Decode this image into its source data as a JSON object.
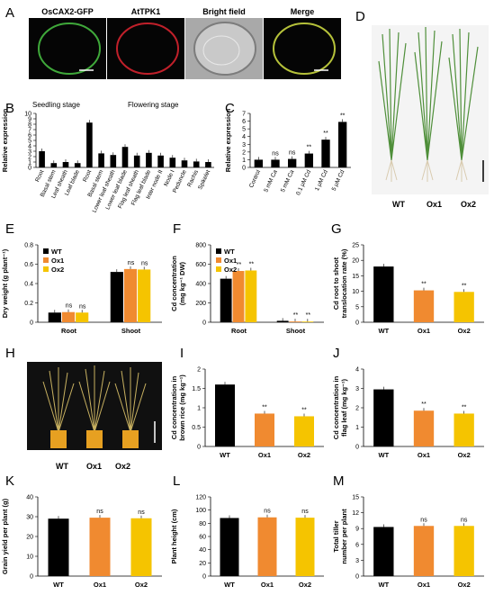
{
  "panel_letters": [
    "A",
    "B",
    "C",
    "D",
    "E",
    "F",
    "G",
    "H",
    "I",
    "J",
    "K",
    "L",
    "M"
  ],
  "micro_titles": [
    "OsCAX2-GFP",
    "AtTPK1",
    "Bright field",
    "Merge"
  ],
  "stage_labels": {
    "seedling": "Seedling stage",
    "flowering": "Flowering stage"
  },
  "photo_D_labels": [
    "WT",
    "Ox1",
    "Ox2"
  ],
  "photo_H_labels": [
    "WT",
    "Ox1",
    "Ox2"
  ],
  "colors": {
    "WT": "#000000",
    "Ox1": "#f08a30",
    "Ox2": "#f5c400",
    "GFP": "#3fa83a",
    "TPK": "#c0202a",
    "merge": "#b5c13a"
  },
  "chart_data": [
    {
      "id": "B",
      "type": "bar",
      "ylabel": "Relative expression",
      "ylim": [
        0,
        10
      ],
      "yticks": [
        0,
        1,
        2,
        3,
        4,
        5,
        6,
        7,
        8,
        9,
        10
      ],
      "categories": [
        "Root",
        "Basal stem",
        "Leaf sheath",
        "Leaf blade",
        "Root",
        "Basal stem",
        "Lower leaf sheath",
        "Lower leaf blade",
        "Flag leaf sheath",
        "Flag leaf blade",
        "Inter node II",
        "Node I",
        "Peduncle",
        "Rachis",
        "Spikelet"
      ],
      "values": [
        3.0,
        0.8,
        1.0,
        0.8,
        8.3,
        2.6,
        2.3,
        3.8,
        2.2,
        2.7,
        2.2,
        1.8,
        1.3,
        1.1,
        1.0
      ]
    },
    {
      "id": "C",
      "type": "bar",
      "ylabel": "Relative expression",
      "ylim": [
        0,
        7
      ],
      "yticks": [
        0,
        1,
        2,
        3,
        4,
        5,
        6,
        7
      ],
      "categories": [
        "Control",
        "5 mM Ca",
        "5 mM Ca",
        "0.1 μM Cd",
        "1 μM Cd",
        "5 μM Cd"
      ],
      "values": [
        1.0,
        1.0,
        1.1,
        1.8,
        3.6,
        5.9
      ],
      "sig": [
        "",
        "ns",
        "ns",
        "**",
        "**",
        "**"
      ]
    },
    {
      "id": "E",
      "type": "bar",
      "ylabel": "Dry weight (g plant⁻¹)",
      "ylim": [
        0,
        0.8
      ],
      "yticks": [
        0,
        0.2,
        0.4,
        0.6,
        0.8
      ],
      "categories": [
        "Root",
        "Shoot"
      ],
      "series": [
        {
          "name": "WT",
          "values": [
            0.1,
            0.52
          ]
        },
        {
          "name": "Ox1",
          "values": [
            0.105,
            0.55
          ]
        },
        {
          "name": "Ox2",
          "values": [
            0.1,
            0.545
          ]
        }
      ],
      "sig": [
        [
          "",
          "ns",
          "ns"
        ],
        [
          "",
          "ns",
          "ns"
        ]
      ]
    },
    {
      "id": "F",
      "type": "bar",
      "ylabel": "Cd concentration (mg kg⁻¹ DW)",
      "ylim": [
        0,
        800
      ],
      "yticks": [
        0,
        200,
        400,
        600,
        800
      ],
      "categories": [
        "Root",
        "Shoot"
      ],
      "series": [
        {
          "name": "WT",
          "values": [
            450,
            15
          ]
        },
        {
          "name": "Ox1",
          "values": [
            530,
            8
          ]
        },
        {
          "name": "Ox2",
          "values": [
            535,
            7
          ]
        }
      ],
      "sig": [
        [
          "",
          "**",
          "**"
        ],
        [
          "",
          "**",
          "**"
        ]
      ]
    },
    {
      "id": "G",
      "type": "bar",
      "ylabel": "Cd root to shoot translocation rate (%)",
      "ylim": [
        0,
        25
      ],
      "yticks": [
        0,
        5,
        10,
        15,
        20,
        25
      ],
      "categories": [
        "WT",
        "Ox1",
        "Ox2"
      ],
      "values": [
        18,
        10.3,
        9.8
      ],
      "sig": [
        "",
        "**",
        "**"
      ]
    },
    {
      "id": "I",
      "type": "bar",
      "ylabel": "Cd concentration in brown rice (mg kg⁻¹)",
      "ylim": [
        0,
        2
      ],
      "yticks": [
        0,
        0.5,
        1,
        1.5,
        2
      ],
      "categories": [
        "WT",
        "Ox1",
        "Ox2"
      ],
      "values": [
        1.6,
        0.85,
        0.78
      ],
      "sig": [
        "",
        "**",
        "**"
      ]
    },
    {
      "id": "J",
      "type": "bar",
      "ylabel": "Cd concentration in flag leaf (mg kg⁻¹)",
      "ylim": [
        0,
        4
      ],
      "yticks": [
        0,
        1,
        2,
        3,
        4
      ],
      "categories": [
        "WT",
        "Ox1",
        "Ox2"
      ],
      "values": [
        2.95,
        1.85,
        1.7
      ],
      "sig": [
        "",
        "**",
        "**"
      ]
    },
    {
      "id": "K",
      "type": "bar",
      "ylabel": "Grain yield per plant (g)",
      "ylim": [
        0,
        40
      ],
      "yticks": [
        0,
        10,
        20,
        30,
        40
      ],
      "categories": [
        "WT",
        "Ox1",
        "Ox2"
      ],
      "values": [
        29,
        29.5,
        29.2
      ],
      "sig": [
        "",
        "ns",
        "ns"
      ]
    },
    {
      "id": "L",
      "type": "bar",
      "ylabel": "Plant height (cm)",
      "ylim": [
        0,
        120
      ],
      "yticks": [
        0,
        20,
        40,
        60,
        80,
        100,
        120
      ],
      "categories": [
        "WT",
        "Ox1",
        "Ox2"
      ],
      "values": [
        88,
        89,
        88.5
      ],
      "sig": [
        "",
        "ns",
        "ns"
      ]
    },
    {
      "id": "M",
      "type": "bar",
      "ylabel": "Total tiller number per plant",
      "ylim": [
        0,
        15
      ],
      "yticks": [
        0,
        3,
        6,
        9,
        12,
        15
      ],
      "categories": [
        "WT",
        "Ox1",
        "Ox2"
      ],
      "values": [
        9.3,
        9.5,
        9.5
      ],
      "sig": [
        "",
        "ns",
        "ns"
      ]
    }
  ]
}
